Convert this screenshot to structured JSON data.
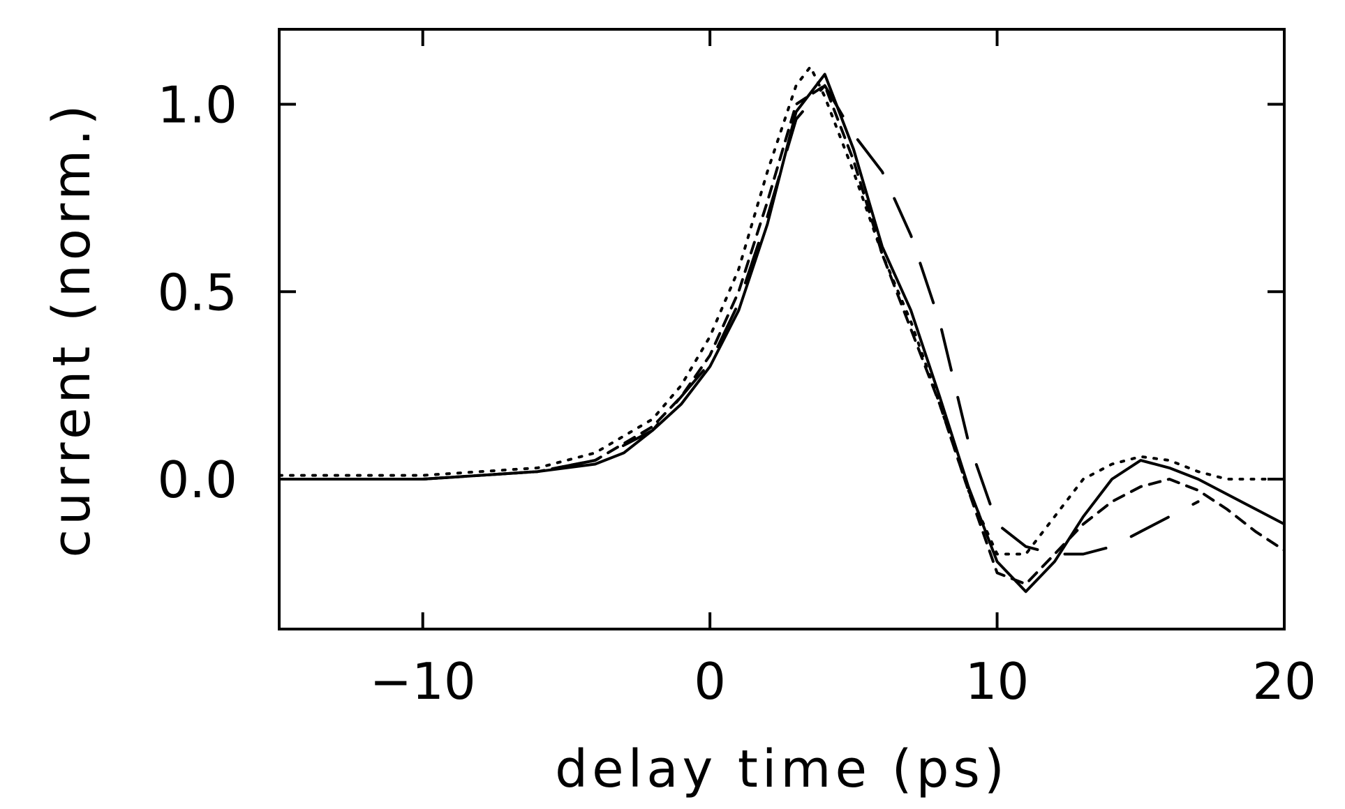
{
  "chart_data": {
    "type": "line",
    "title": "",
    "xlabel": "delay time (ps)",
    "ylabel": "current (norm.)",
    "xlim": [
      -15,
      20
    ],
    "ylim": [
      -0.4,
      1.2
    ],
    "xticks": [
      -10,
      0,
      10,
      20
    ],
    "xtick_labels": [
      "−10",
      "0",
      "10",
      "20"
    ],
    "yticks": [
      0.0,
      0.5,
      1.0
    ],
    "ytick_labels": [
      "0.0",
      "0.5",
      "1.0"
    ],
    "grid": false,
    "legend": "none",
    "series": [
      {
        "style": "solid",
        "x": [
          -15,
          -10,
          -6,
          -4,
          -3,
          -2,
          -1,
          0,
          1,
          2,
          3,
          4,
          5,
          6,
          7,
          8,
          9,
          10,
          11,
          12,
          13,
          14,
          15,
          16,
          17,
          18,
          19,
          20
        ],
        "y": [
          0.0,
          0.0,
          0.02,
          0.04,
          0.07,
          0.13,
          0.2,
          0.3,
          0.45,
          0.68,
          0.98,
          1.08,
          0.88,
          0.62,
          0.45,
          0.22,
          -0.02,
          -0.22,
          -0.3,
          -0.22,
          -0.1,
          0.0,
          0.05,
          0.03,
          0.0,
          -0.04,
          -0.08,
          -0.12
        ]
      },
      {
        "style": "dotted",
        "x": [
          -15,
          -10,
          -6,
          -4,
          -2,
          -1,
          0,
          1,
          2,
          3,
          3.5,
          4,
          5,
          6,
          7,
          8,
          9,
          10,
          11,
          12,
          13,
          14,
          15,
          16,
          17,
          18,
          19,
          20
        ],
        "y": [
          0.01,
          0.01,
          0.03,
          0.07,
          0.16,
          0.25,
          0.38,
          0.56,
          0.82,
          1.05,
          1.1,
          1.02,
          0.82,
          0.6,
          0.42,
          0.2,
          -0.03,
          -0.2,
          -0.2,
          -0.1,
          0.0,
          0.04,
          0.06,
          0.05,
          0.02,
          0.0,
          0.0,
          0.0
        ]
      },
      {
        "style": "short-dash",
        "x": [
          -15,
          -10,
          -6,
          -4,
          -2,
          -1,
          0,
          1,
          2,
          3,
          4,
          5,
          6,
          7,
          8,
          9,
          10,
          11,
          12,
          13,
          14,
          15,
          16,
          17,
          18,
          19,
          20
        ],
        "y": [
          0.0,
          0.0,
          0.02,
          0.05,
          0.14,
          0.22,
          0.33,
          0.5,
          0.74,
          1.0,
          1.05,
          0.85,
          0.6,
          0.4,
          0.2,
          -0.03,
          -0.25,
          -0.28,
          -0.2,
          -0.12,
          -0.06,
          -0.02,
          0.0,
          -0.03,
          -0.08,
          -0.14,
          -0.19
        ]
      },
      {
        "style": "long-dash",
        "x": [
          -15,
          -10,
          -6,
          -4,
          -2,
          0,
          1,
          2,
          3,
          4,
          5,
          6,
          7,
          8,
          9,
          10,
          11,
          12,
          13,
          14,
          15,
          16,
          17
        ],
        "y": [
          0.0,
          0.0,
          0.02,
          0.05,
          0.13,
          0.31,
          0.47,
          0.7,
          0.96,
          1.05,
          0.92,
          0.82,
          0.65,
          0.42,
          0.1,
          -0.12,
          -0.18,
          -0.2,
          -0.2,
          -0.18,
          -0.14,
          -0.1,
          -0.06
        ]
      }
    ]
  }
}
